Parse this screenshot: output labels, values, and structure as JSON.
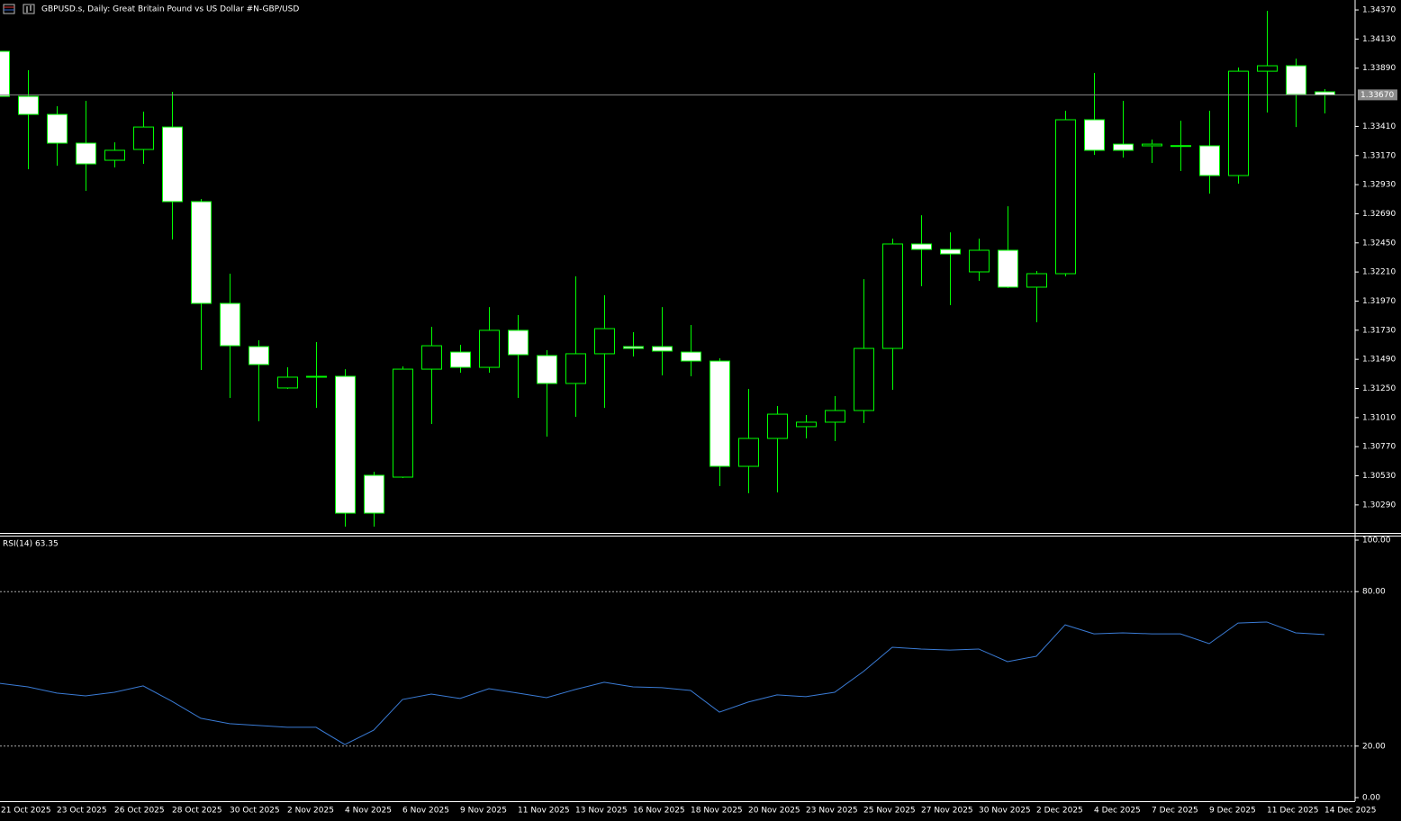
{
  "chart_data": [
    {
      "type": "candlestick",
      "title": "GBPUSD.s, Daily:  Great Britain Pound vs US Dollar #N-GBP/USD",
      "categories": [
        "21 Oct 2025",
        null,
        "23 Oct 2025",
        null,
        "26 Oct 2025",
        null,
        "28 Oct 2025",
        null,
        "30 Oct 2025",
        null,
        "2 Nov 2025",
        null,
        "4 Nov 2025",
        null,
        "6 Nov 2025",
        null,
        "9 Nov 2025",
        null,
        "11 Nov 2025",
        null,
        "13 Nov 2025",
        null,
        "16 Nov 2025",
        null,
        "18 Nov 2025",
        null,
        "20 Nov 2025",
        null,
        "23 Nov 2025",
        null,
        "25 Nov 2025",
        null,
        "27 Nov 2025",
        null,
        "30 Nov 2025",
        null,
        "2 Dec 2025",
        null,
        "4 Dec 2025",
        null,
        "7 Dec 2025",
        null,
        "9 Dec 2025",
        null,
        "11 Dec 2025",
        null,
        "14 Dec 2025"
      ],
      "open": [
        1.34029,
        1.33658,
        1.33509,
        1.33272,
        1.33131,
        1.3322,
        1.33405,
        1.3279,
        1.31951,
        1.31595,
        1.31254,
        1.31343,
        1.3135,
        1.30534,
        1.30519,
        1.31409,
        1.3155,
        1.31424,
        1.31729,
        1.31521,
        1.31291,
        1.31536,
        1.31595,
        1.31595,
        1.3155,
        1.31476,
        1.30608,
        1.30838,
        1.30935,
        1.30972,
        1.31068,
        1.3158,
        1.32441,
        1.32396,
        1.32211,
        1.32389,
        1.32085,
        1.32196,
        1.33465,
        1.33264,
        1.3325,
        1.3325,
        1.3325,
        1.33005,
        1.33865,
        1.3391,
        1.33695
      ],
      "high": [
        1.34081,
        1.33873,
        1.33576,
        1.33621,
        1.33279,
        1.33532,
        1.33695,
        1.32812,
        1.32196,
        1.31647,
        1.31424,
        1.31632,
        1.31409,
        1.30564,
        1.31432,
        1.31758,
        1.3161,
        1.31921,
        1.31855,
        1.31565,
        1.32174,
        1.32018,
        1.31714,
        1.31921,
        1.31773,
        1.31499,
        1.31246,
        1.31105,
        1.31031,
        1.31187,
        1.32151,
        1.32485,
        1.32678,
        1.32537,
        1.32485,
        1.32752,
        1.32218,
        1.33539,
        1.33851,
        1.33621,
        1.33302,
        1.33457,
        1.33539,
        1.33895,
        1.34363,
        1.33969,
        1.33717
      ],
      "low": [
        1.33635,
        1.33057,
        1.33086,
        1.32879,
        1.33072,
        1.33101,
        1.32478,
        1.31402,
        1.31172,
        1.30979,
        1.31246,
        1.3109,
        1.30111,
        1.30111,
        1.30512,
        1.30957,
        1.3138,
        1.3138,
        1.31172,
        1.30853,
        1.31016,
        1.3109,
        1.31513,
        1.31358,
        1.3135,
        1.30445,
        1.30386,
        1.30393,
        1.30838,
        1.30816,
        1.30964,
        1.31239,
        1.32092,
        1.31936,
        1.32137,
        1.32077,
        1.31795,
        1.32174,
        1.33175,
        1.33153,
        1.33109,
        1.33042,
        1.32856,
        1.32938,
        1.33524,
        1.33405,
        1.33517
      ],
      "close": [
        1.33658,
        1.33509,
        1.33272,
        1.33101,
        1.33213,
        1.33405,
        1.3279,
        1.31951,
        1.31602,
        1.31447,
        1.31343,
        1.3135,
        1.30222,
        1.30222,
        1.31409,
        1.31602,
        1.31424,
        1.31729,
        1.31528,
        1.31291,
        1.31536,
        1.31743,
        1.3158,
        1.31558,
        1.31476,
        1.30608,
        1.30838,
        1.31038,
        1.30972,
        1.31068,
        1.3158,
        1.32441,
        1.32396,
        1.32359,
        1.32389,
        1.32085,
        1.32196,
        1.33465,
        1.33213,
        1.33213,
        1.33264,
        1.33252,
        1.33005,
        1.33865,
        1.3391,
        1.33673,
        1.3367
      ],
      "up_color": "#000000",
      "down_color": "#ffffff",
      "outline_color": "#00ff00",
      "ylim": [
        1.30059,
        1.34452
      ],
      "yticks": [
        {
          "value": 1.3437,
          "label": "1.34370"
        },
        {
          "value": 1.3413,
          "label": "1.34130"
        },
        {
          "value": 1.3389,
          "label": "1.33890"
        },
        {
          "value": 1.3341,
          "label": "1.33410"
        },
        {
          "value": 1.3317,
          "label": "1.33170"
        },
        {
          "value": 1.3293,
          "label": "1.32930"
        },
        {
          "value": 1.3269,
          "label": "1.32690"
        },
        {
          "value": 1.3245,
          "label": "1.32450"
        },
        {
          "value": 1.3221,
          "label": "1.32210"
        },
        {
          "value": 1.3197,
          "label": "1.31970"
        },
        {
          "value": 1.3173,
          "label": "1.31730"
        },
        {
          "value": 1.3149,
          "label": "1.31490"
        },
        {
          "value": 1.3125,
          "label": "1.31250"
        },
        {
          "value": 1.3101,
          "label": "1.31010"
        },
        {
          "value": 1.3077,
          "label": "1.30770"
        },
        {
          "value": 1.3053,
          "label": "1.30530"
        },
        {
          "value": 1.3029,
          "label": "1.30290"
        }
      ],
      "current_price": {
        "value": 1.3367,
        "label": "1.33670"
      }
    },
    {
      "type": "line",
      "title": "RSI(14) 63.35",
      "series": [
        {
          "name": "RSI(14)",
          "color": "#3a7bd5",
          "values": [
            44.4,
            43.0,
            40.6,
            39.5,
            40.9,
            43.4,
            37.4,
            30.8,
            28.7,
            28.0,
            27.3,
            27.3,
            20.6,
            26.2,
            38.1,
            40.2,
            38.5,
            42.3,
            40.6,
            38.8,
            42.0,
            44.8,
            43.0,
            42.7,
            41.6,
            33.2,
            37.1,
            39.9,
            39.2,
            40.9,
            49.0,
            58.4,
            57.7,
            57.3,
            57.7,
            52.8,
            54.9,
            67.1,
            63.6,
            64.0,
            63.6,
            63.6,
            59.8,
            67.8,
            68.2,
            64.0,
            63.35
          ]
        }
      ],
      "ylim": [
        0,
        100
      ],
      "yticks": [
        {
          "value": 100,
          "label": "100.00"
        },
        {
          "value": 80,
          "label": "80.00"
        },
        {
          "value": 20,
          "label": "20.00"
        },
        {
          "value": 0,
          "label": "0.00"
        }
      ]
    }
  ]
}
